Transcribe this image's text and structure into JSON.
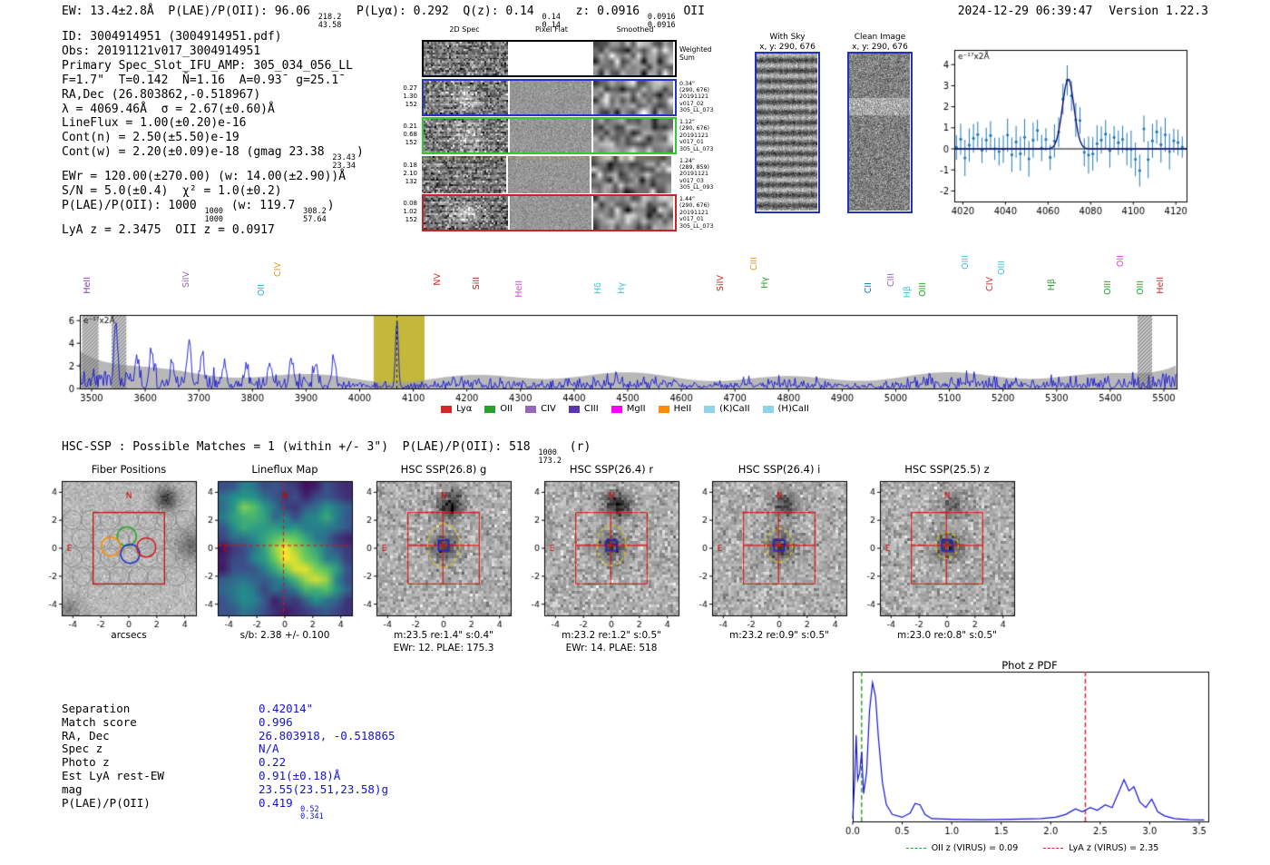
{
  "meta": {
    "timestamp": "2024-12-29 06:39:47",
    "version_label": "Version 1.22.3"
  },
  "header": {
    "segments": [
      "EW: 13.4±2.8Å  P(LAE)/P(OII): 96.06 ",
      {
        "hi": "218.2",
        "lo": "43.58"
      },
      "  P(Lyα): 0.292  Q(z): 0.14 ",
      {
        "hi": "0.14",
        "lo": "0.14"
      },
      "  z: 0.0916 ",
      {
        "hi": "0.0916",
        "lo": "0.0916"
      },
      " OII"
    ]
  },
  "info_block": {
    "lines": [
      [
        "ID: 3004914951 (3004914951.pdf)"
      ],
      [
        "Obs: 20191121v017_3004914951"
      ],
      [
        "Primary Spec_Slot_IFU_AMP: 305_034_056_LL"
      ],
      [
        "F=1.7\"  T=0.142  N̄=1.16  A=0.93̄  g=25.1̄"
      ],
      [
        "RA,Dec (26.803862,-0.518967)"
      ],
      [
        "λ = 4069.46Å  σ = 2.67(±0.60)Å"
      ],
      [
        "LineFlux = 1.00(±0.20)e-16"
      ],
      [
        "Cont(n) = 2.50(±5.50)e-19"
      ],
      [
        "Cont(w) = 2.20(±0.09)e-18 (gmag 23.38 ",
        {
          "hi": "23.43",
          "lo": "23.34"
        },
        ")"
      ],
      [
        "EWr = 120.00(±270.00) (w: 14.00(±2.90))Å"
      ],
      [
        "S/N = 5.0(±0.4)  χ² = 1.0(±0.2)"
      ],
      [
        "P(LAE)/P(OII): 1000 ",
        {
          "hi": "1000",
          "lo": "1000"
        },
        " (w: 119.7 ",
        {
          "hi": "308.2",
          "lo": "57.64"
        },
        ")"
      ],
      [
        "LyA z = 2.3475  OII z = 0.0917"
      ]
    ]
  },
  "spec2d": {
    "col_headers": [
      "2D Spec",
      "Pixel Flat",
      "Smoothed"
    ],
    "weighted_sum": [
      "Weighted",
      "Sum"
    ],
    "rows": [
      {
        "border": "#000000",
        "left": [],
        "right": []
      },
      {
        "border": "#2233cc",
        "left": [
          "0.27",
          "1.30",
          "152"
        ],
        "right": [
          "0.34\"",
          "(290, 676)",
          "20191121",
          "v017_02",
          "305_LL_073"
        ]
      },
      {
        "border": "#2ecc2e",
        "left": [
          "0.21",
          "0.68",
          "152"
        ],
        "right": [
          "1.12\"",
          "(290, 676)",
          "20191121",
          "v017_01",
          "305_LL_073"
        ]
      },
      {
        "border": "none",
        "left": [
          "0.18",
          "2.10",
          "132"
        ],
        "right": [
          "1.24\"",
          "(289, 859)",
          "20191121",
          "v017_03",
          "305_LL_093"
        ]
      },
      {
        "border": "#cc2222",
        "left": [
          "0.08",
          "1.02",
          "152"
        ],
        "right": [
          "1.44\"",
          "(290, 676)",
          "20191121",
          "v017_01",
          "305_LL_073"
        ]
      }
    ]
  },
  "sky_panels": {
    "with_sky": {
      "title": "With Sky",
      "coords": "x, y: 290, 676"
    },
    "clean": {
      "title": "Clean Image",
      "coords": "x, y: 290, 676"
    }
  },
  "hsc_line": {
    "segments": [
      "HSC-SSP : Possible Matches = 1 (within +/- 3\")  P(LAE)/P(OII): 518 ",
      {
        "hi": "1000",
        "lo": "173.2"
      },
      " (r)"
    ]
  },
  "cutout_axis": {
    "ticks": [
      -4,
      -2,
      0,
      2,
      4
    ],
    "range": 4.8
  },
  "cutouts": [
    {
      "title": "Fiber Positions",
      "overlay": "fibers",
      "captions": [
        "arcsecs"
      ]
    },
    {
      "title": "Lineflux Map",
      "overlay": "lineflux",
      "captions": [
        "s/b: 2.38 +/- 0.100"
      ]
    },
    {
      "title": "HSC SSP(26.8) g",
      "overlay": "hsc",
      "ellipse": [
        1.15,
        1.55
      ],
      "top_blob": 1.0,
      "captions": [
        "m:23.5 re:1.4\" s:0.4\"",
        "EWr: 12. PLAE: 175.3"
      ]
    },
    {
      "title": "HSC SSP(26.4) r",
      "overlay": "hsc",
      "ellipse": [
        1.05,
        1.45
      ],
      "top_blob": 1.0,
      "captions": [
        "m:23.2 re:1.2\" s:0.5\"",
        "EWr: 14. PLAE: 518"
      ]
    },
    {
      "title": "HSC SSP(26.4) i",
      "overlay": "hsc",
      "ellipse": [
        0.95,
        1.2
      ],
      "top_blob": 0.7,
      "captions": [
        "m:23.2 re:0.9\" s:0.5\""
      ]
    },
    {
      "title": "HSC SSP(25.5) z",
      "overlay": "hsc",
      "ellipse": [
        0.8,
        0.95
      ],
      "top_blob": 0.45,
      "captions": [
        "m:23.0 re:0.8\" s:0.5\""
      ]
    }
  ],
  "match_table": {
    "rows": [
      {
        "key": "Separation",
        "value": [
          "0.42014\""
        ]
      },
      {
        "key": "Match score",
        "value": [
          "0.996"
        ]
      },
      {
        "key": "RA, Dec",
        "value": [
          "26.803918, -0.518865"
        ]
      },
      {
        "key": "Spec z",
        "value": [
          "N/A"
        ]
      },
      {
        "key": "Photo z",
        "value": [
          "0.22"
        ]
      },
      {
        "key": "Est LyA rest-EW",
        "value": [
          "0.91(±0.18)Å"
        ]
      },
      {
        "key": "mag",
        "value": [
          "23.55(23.51,23.58)g"
        ]
      },
      {
        "key": "P(LAE)/P(OII)",
        "value": [
          "0.419 ",
          {
            "hi": "0.52",
            "lo": "0.341"
          }
        ]
      }
    ]
  },
  "photz": {
    "title": "Phot z PDF"
  },
  "chart_data": [
    {
      "id": "line_fit",
      "type": "scatter",
      "title": "",
      "units_label": "e⁻¹⁷x2Å",
      "xticks": [
        4020,
        4040,
        4060,
        4080,
        4100,
        4120
      ],
      "yticks": [
        -2,
        -1,
        0,
        1,
        2,
        3,
        4
      ],
      "x_range": [
        4016,
        4125
      ],
      "y_range": [
        -2.5,
        4.7
      ],
      "model_gaussian": {
        "center": 4069.46,
        "sigma": 2.67,
        "amplitude": 3.35,
        "continuum": 0.0
      },
      "point_color": "#1f77b4",
      "model_color": "#10106e"
    },
    {
      "id": "full_spectrum",
      "type": "line",
      "units_label": "e⁻¹⁷x2Å",
      "x_range": [
        3478,
        5523
      ],
      "y_range": [
        0,
        6.5
      ],
      "xticks": [
        3500,
        3600,
        3700,
        3800,
        3900,
        4000,
        4100,
        4200,
        4300,
        4400,
        4500,
        4600,
        4700,
        4800,
        4900,
        5000,
        5100,
        5200,
        5300,
        5400,
        5500
      ],
      "yticks": [
        0,
        2,
        4,
        6
      ],
      "line_color": "#1414d2",
      "error_band_color": "#a0a0a0",
      "emission_line": {
        "wave": 4069.46,
        "sigma": 2.67,
        "peak": 5.9
      },
      "highlight_band": {
        "x0": 4026,
        "x1": 4121,
        "color": "#c3b83a"
      },
      "masked_bands": [
        [
          3482,
          3513
        ],
        [
          3537,
          3565
        ],
        [
          5451,
          5478
        ]
      ],
      "line_markers": [
        {
          "wave": 3493,
          "label": "HeII",
          "color": "#7a3db8",
          "len": 40
        },
        {
          "wave": 3678,
          "label": "SiIV",
          "color": "#9467bd",
          "len": 46
        },
        {
          "wave": 3818,
          "label": "OII",
          "color": "#22b5c4",
          "len": 32
        },
        {
          "wave": 3849,
          "label": "CIV",
          "color": "#e09c20",
          "len": 56
        },
        {
          "wave": 4146,
          "label": "NV",
          "color": "#d62728",
          "len": 44
        },
        {
          "wave": 4219,
          "label": "SiII",
          "color": "#b22222",
          "len": 40
        },
        {
          "wave": 4299,
          "label": "HeII",
          "color": "#d63fd6",
          "len": 36
        },
        {
          "wave": 4446,
          "label": "Hδ",
          "color": "#49c2d4",
          "len": 34
        },
        {
          "wave": 4490,
          "label": "Hγ",
          "color": "#49c2d4",
          "len": 34
        },
        {
          "wave": 4674,
          "label": "SiIV",
          "color": "#d62728",
          "len": 42
        },
        {
          "wave": 4737,
          "label": "CIII",
          "color": "#e09c20",
          "len": 62
        },
        {
          "wave": 4757,
          "label": "Hγ",
          "color": "#2ca02c",
          "len": 40
        },
        {
          "wave": 4950,
          "label": "CII",
          "color": "#1f77b4",
          "len": 34
        },
        {
          "wave": 4992,
          "label": "CIII",
          "color": "#9467bd",
          "len": 44
        },
        {
          "wave": 5022,
          "label": "Hβ",
          "color": "#49c2d4",
          "len": 30
        },
        {
          "wave": 5052,
          "label": "OIII",
          "color": "#2ca02c",
          "len": 34
        },
        {
          "wave": 5131,
          "label": "OIII",
          "color": "#49c2d4",
          "len": 64
        },
        {
          "wave": 5177,
          "label": "CIV",
          "color": "#d62728",
          "len": 40
        },
        {
          "wave": 5199,
          "label": "OIII",
          "color": "#49c2d4",
          "len": 58
        },
        {
          "wave": 5292,
          "label": "Hβ",
          "color": "#2ca02c",
          "len": 38
        },
        {
          "wave": 5397,
          "label": "OIII",
          "color": "#2ca02c",
          "len": 36
        },
        {
          "wave": 5420,
          "label": "OII",
          "color": "#e040e0",
          "len": 64
        },
        {
          "wave": 5458,
          "label": "OIII",
          "color": "#2ca02c",
          "len": 36
        },
        {
          "wave": 5495,
          "label": "HeII",
          "color": "#d62728",
          "len": 40
        }
      ],
      "legend": [
        {
          "label": "Lyα",
          "color": "#d62728"
        },
        {
          "label": "OII",
          "color": "#2ca02c"
        },
        {
          "label": "CIV",
          "color": "#9467bd"
        },
        {
          "label": "CIII",
          "color": "#5e35b1"
        },
        {
          "label": "MgII",
          "color": "#ff00ff"
        },
        {
          "label": "HeII",
          "color": "#ff8c00"
        },
        {
          "label": "(K)CaII",
          "color": "#8fd3e8"
        },
        {
          "label": "(H)CaII",
          "color": "#8fd3e8"
        }
      ]
    },
    {
      "id": "photz_pdf",
      "type": "line",
      "xticks": [
        0.0,
        0.5,
        1.0,
        1.5,
        2.0,
        2.5,
        3.0,
        3.5
      ],
      "x_range": [
        0,
        3.58
      ],
      "curve_color": "#1414d2",
      "points": [
        [
          0.0,
          0.02
        ],
        [
          0.02,
          0.3
        ],
        [
          0.035,
          0.62
        ],
        [
          0.05,
          0.3
        ],
        [
          0.07,
          0.35
        ],
        [
          0.09,
          0.5
        ],
        [
          0.11,
          0.2
        ],
        [
          0.14,
          0.35
        ],
        [
          0.17,
          0.8
        ],
        [
          0.2,
          1.0
        ],
        [
          0.23,
          0.9
        ],
        [
          0.26,
          0.6
        ],
        [
          0.3,
          0.28
        ],
        [
          0.34,
          0.12
        ],
        [
          0.4,
          0.05
        ],
        [
          0.5,
          0.03
        ],
        [
          0.58,
          0.06
        ],
        [
          0.63,
          0.13
        ],
        [
          0.68,
          0.12
        ],
        [
          0.73,
          0.05
        ],
        [
          0.8,
          0.02
        ],
        [
          1.0,
          0.015
        ],
        [
          1.3,
          0.012
        ],
        [
          1.6,
          0.015
        ],
        [
          1.9,
          0.02
        ],
        [
          2.05,
          0.03
        ],
        [
          2.15,
          0.05
        ],
        [
          2.25,
          0.09
        ],
        [
          2.32,
          0.07
        ],
        [
          2.4,
          0.1
        ],
        [
          2.47,
          0.08
        ],
        [
          2.55,
          0.12
        ],
        [
          2.62,
          0.1
        ],
        [
          2.68,
          0.2
        ],
        [
          2.74,
          0.3
        ],
        [
          2.79,
          0.22
        ],
        [
          2.84,
          0.25
        ],
        [
          2.9,
          0.14
        ],
        [
          2.96,
          0.1
        ],
        [
          3.02,
          0.16
        ],
        [
          3.08,
          0.07
        ],
        [
          3.15,
          0.04
        ],
        [
          3.25,
          0.02
        ],
        [
          3.4,
          0.012
        ],
        [
          3.55,
          0.01
        ]
      ],
      "vlines": [
        {
          "x": 0.09,
          "color": "#2ca02c",
          "label": "OII z (VIRUS) = 0.09"
        },
        {
          "x": 2.35,
          "color": "#d62728",
          "label": "LyA z (VIRUS) = 2.35"
        }
      ]
    }
  ]
}
